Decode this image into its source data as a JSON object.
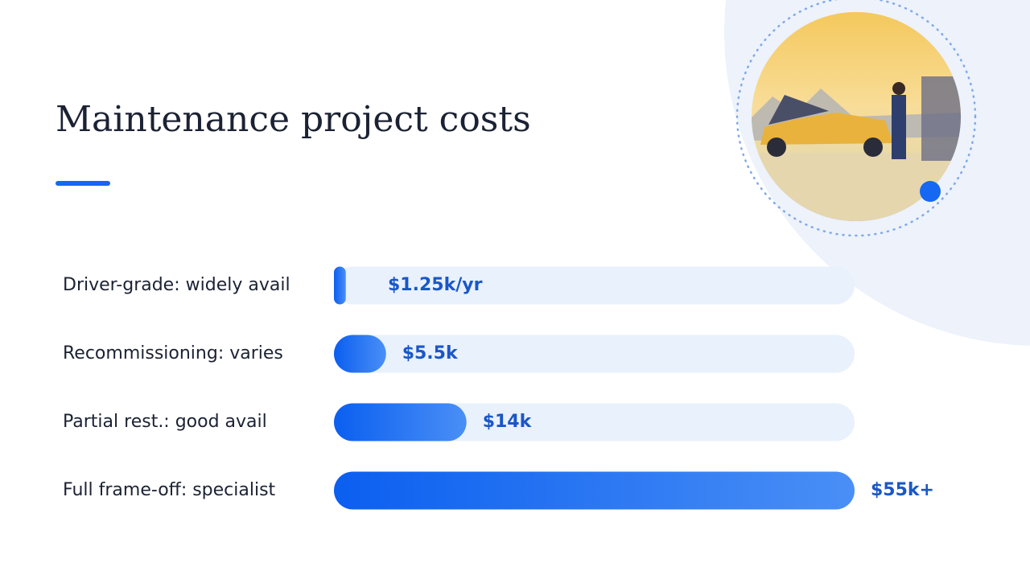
{
  "chart_data": {
    "type": "bar",
    "orientation": "horizontal",
    "title": "Maintenance project costs",
    "categories": [
      "Driver-grade: widely avail",
      "Recommissioning: varies",
      "Partial rest.: good avail",
      "Full frame-off: specialist"
    ],
    "values": [
      1250,
      5500,
      14000,
      55000
    ],
    "value_labels": [
      "$1.25k/yr",
      "$5.5k",
      "$14k",
      "$55k+"
    ],
    "xlim": [
      0,
      55000
    ],
    "color": "#1668f2"
  }
}
